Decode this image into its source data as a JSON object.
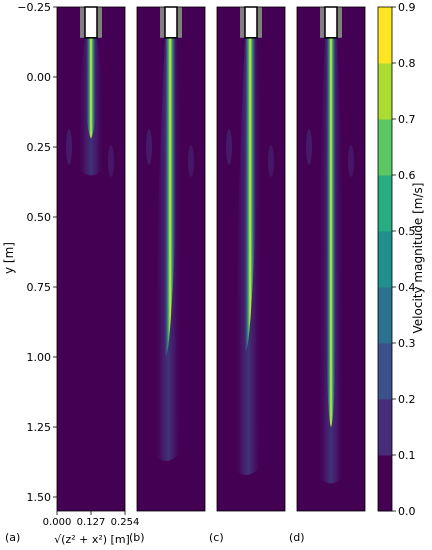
{
  "chart_data": {
    "type": "heatmap",
    "ylabel": "y [m]",
    "xlabel": "√(z² + x²) [m]",
    "x_ticks": [
      "0.000",
      "0.127",
      "0.254"
    ],
    "y_ticks": [
      "−0.25",
      "0.00",
      "0.25",
      "0.50",
      "0.75",
      "1.00",
      "1.25",
      "1.50"
    ],
    "y_tick_values": [
      -0.25,
      0.0,
      0.25,
      0.5,
      0.75,
      1.0,
      1.25,
      1.5
    ],
    "ylim": [
      -0.25,
      1.55
    ],
    "xlim": [
      0.0,
      0.254
    ],
    "colorbar": {
      "label": "Velocity magnitude [m/s]",
      "ticks": [
        "0.0",
        "0.1",
        "0.2",
        "0.3",
        "0.4",
        "0.5",
        "0.6",
        "0.7",
        "0.8",
        "0.9"
      ],
      "tick_values": [
        0,
        0.1,
        0.2,
        0.3,
        0.4,
        0.5,
        0.6,
        0.7,
        0.8,
        0.9
      ],
      "range": [
        0.0,
        0.9
      ],
      "colormap": "viridis",
      "colors": [
        "#440154",
        "#472c7a",
        "#3b518b",
        "#2c718e",
        "#21908d",
        "#27ad81",
        "#5cc863",
        "#aadc32",
        "#fde725"
      ]
    },
    "panels": [
      {
        "label": "(a)",
        "core_end_y": 0.22,
        "plume_end_y": 0.33
      },
      {
        "label": "(b)",
        "core_end_y": 1.0,
        "plume_end_y": 1.35
      },
      {
        "label": "(c)",
        "core_end_y": 0.98,
        "plume_end_y": 1.4
      },
      {
        "label": "(d)",
        "core_end_y": 1.25,
        "plume_end_y": 1.43
      }
    ]
  }
}
